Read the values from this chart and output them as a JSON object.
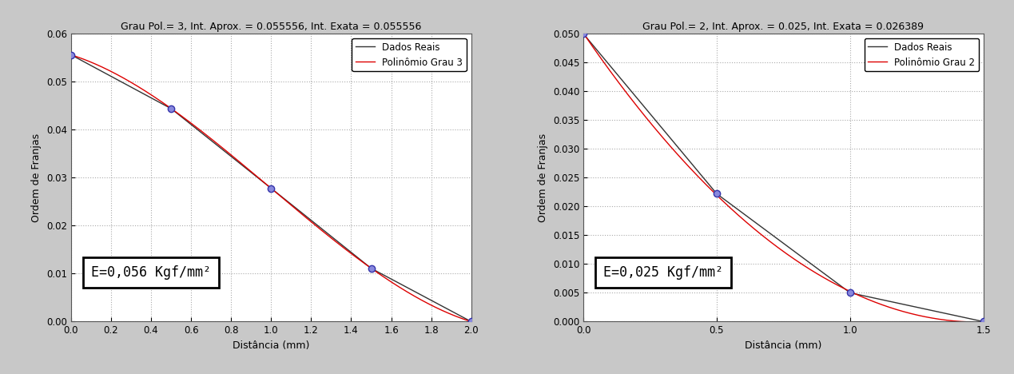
{
  "plot1": {
    "title": "Grau Pol.= 3, Int. Aprox. = 0.055556, Int. Exata = 0.055556",
    "xlabel": "Distância (mm)",
    "ylabel": "Ordem de Franjas",
    "xlim": [
      0,
      2.0
    ],
    "ylim": [
      0,
      0.06
    ],
    "xticks": [
      0,
      0.2,
      0.4,
      0.6,
      0.8,
      1.0,
      1.2,
      1.4,
      1.6,
      1.8,
      2.0
    ],
    "yticks": [
      0,
      0.01,
      0.02,
      0.03,
      0.04,
      0.05,
      0.06
    ],
    "data_x": [
      0,
      0.5,
      1.0,
      1.5,
      2.0
    ],
    "data_y": [
      0.0556,
      0.0444,
      0.0278,
      0.0111,
      0.0
    ],
    "poly_degree": 3,
    "annotation": "E=0,056 Kgf/mm²",
    "legend1": "Dados Reais",
    "legend2": "Polinômio Grau 3",
    "plot_bg": "#ffffff",
    "grid_color": "#aaaaaa",
    "line_color_real": "#333333",
    "line_color_poly": "#dd0000",
    "marker_facecolor": "#8888dd",
    "marker_edgecolor": "#3333aa"
  },
  "plot2": {
    "title": "Grau Pol.= 2, Int. Aprox. = 0.025, Int. Exata = 0.026389",
    "xlabel": "Distância (mm)",
    "ylabel": "Ordem de Franjas",
    "xlim": [
      0,
      1.5
    ],
    "ylim": [
      0,
      0.05
    ],
    "xticks": [
      0,
      0.5,
      1.0,
      1.5
    ],
    "yticks": [
      0,
      0.005,
      0.01,
      0.015,
      0.02,
      0.025,
      0.03,
      0.035,
      0.04,
      0.045,
      0.05
    ],
    "data_x": [
      0,
      0.5,
      1.0,
      1.5
    ],
    "data_y": [
      0.05,
      0.0222,
      0.005,
      0.0
    ],
    "poly_degree": 2,
    "annotation": "E=0,025 Kgf/mm²",
    "legend1": "Dados Reais",
    "legend2": "Polinômio Grau 2",
    "plot_bg": "#ffffff",
    "grid_color": "#aaaaaa",
    "line_color_real": "#333333",
    "line_color_poly": "#dd0000",
    "marker_facecolor": "#8888dd",
    "marker_edgecolor": "#3333aa"
  },
  "figure_bg": "#c8c8c8",
  "title_fontsize": 9,
  "label_fontsize": 9,
  "tick_fontsize": 8.5,
  "legend_fontsize": 8.5,
  "annot_fontsize": 12
}
